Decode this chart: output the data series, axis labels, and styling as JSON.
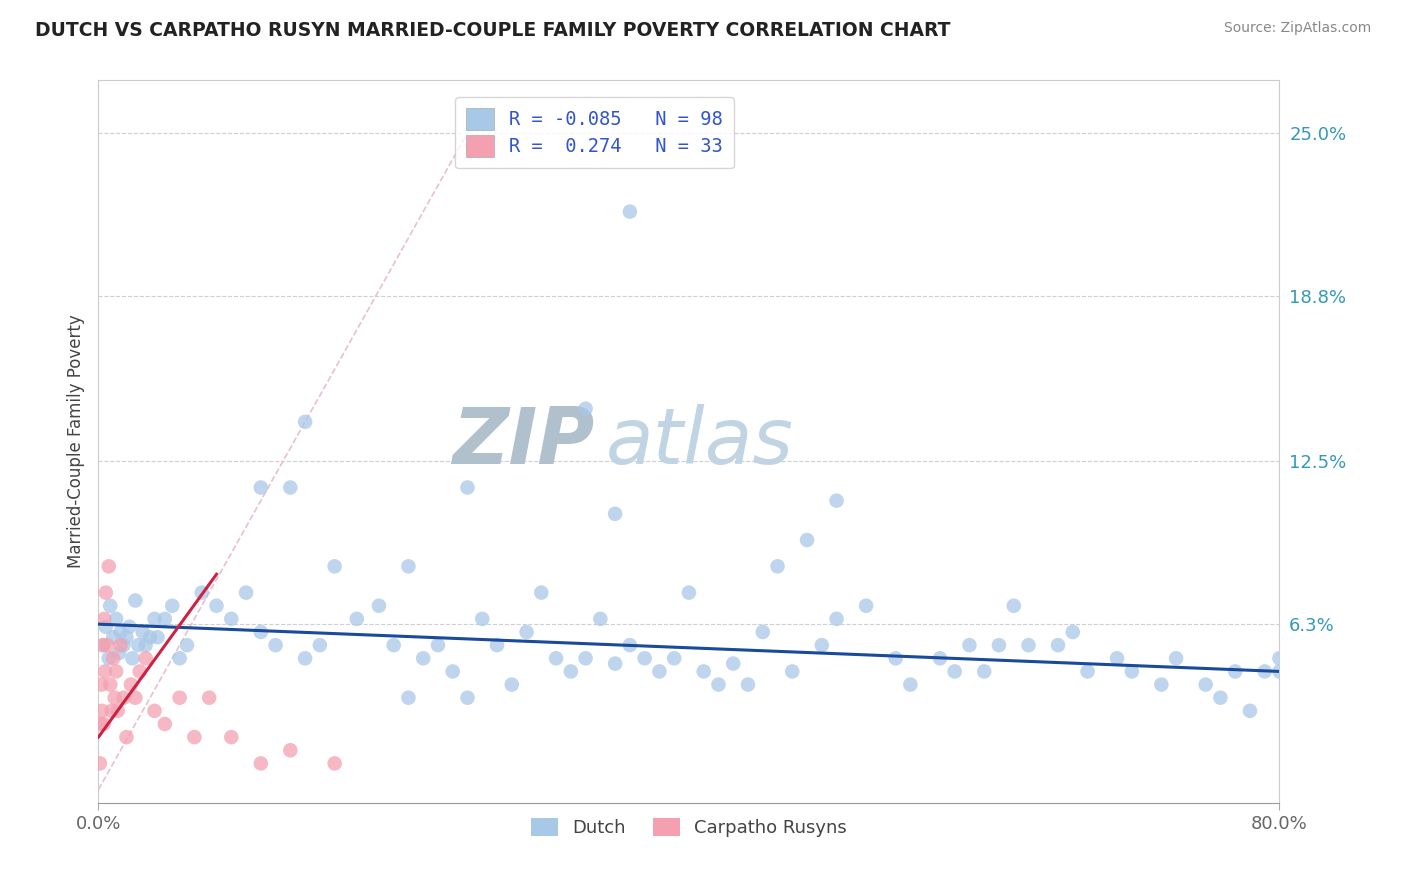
{
  "title": "DUTCH VS CARPATHO RUSYN MARRIED-COUPLE FAMILY POVERTY CORRELATION CHART",
  "source": "Source: ZipAtlas.com",
  "ylabel": "Married-Couple Family Poverty",
  "xlim": [
    0.0,
    80.0
  ],
  "ylim": [
    -0.5,
    27.0
  ],
  "x_tick_labels": [
    "0.0%",
    "80.0%"
  ],
  "y_tick_positions": [
    6.3,
    12.5,
    18.8,
    25.0
  ],
  "y_tick_labels": [
    "6.3%",
    "12.5%",
    "18.8%",
    "25.0%"
  ],
  "dutch_R": -0.085,
  "dutch_N": 98,
  "rusyn_R": 0.274,
  "rusyn_N": 33,
  "dutch_color": "#a8c8e8",
  "rusyn_color": "#f4a0b0",
  "dutch_line_color": "#1a4a9a",
  "rusyn_line_color": "#cc2244",
  "ref_line_color": "#e8b8c8",
  "background_color": "#ffffff",
  "grid_color": "#bbbbbb",
  "title_color": "#222222",
  "watermark_ZIP_color": "#b0c0cc",
  "watermark_atlas_color": "#c0d4e4",
  "source_color": "#888888",
  "axis_label_color": "#444444",
  "ytick_color": "#3399bb",
  "xtick_color": "#666666",
  "legend_color": "#3355cc",
  "dutch_reg_x0": 0.0,
  "dutch_reg_x1": 80.0,
  "dutch_reg_y0": 6.3,
  "dutch_reg_y1": 4.5,
  "rusyn_reg_x0": 0.0,
  "rusyn_reg_x1": 8.0,
  "rusyn_reg_y0": 2.0,
  "rusyn_reg_y1": 8.2,
  "ref_diag_x0": 0.0,
  "ref_diag_y0": 0.0,
  "ref_diag_x1": 26.0,
  "ref_diag_y1": 26.0,
  "dutch_x": [
    0.3,
    0.5,
    0.7,
    0.8,
    1.0,
    1.2,
    1.4,
    1.5,
    1.7,
    1.9,
    2.1,
    2.3,
    2.5,
    2.7,
    3.0,
    3.2,
    3.5,
    3.8,
    4.0,
    4.5,
    5.0,
    5.5,
    6.0,
    7.0,
    8.0,
    9.0,
    10.0,
    11.0,
    12.0,
    13.0,
    14.0,
    15.0,
    16.0,
    17.5,
    19.0,
    20.0,
    21.0,
    22.0,
    23.0,
    24.0,
    25.0,
    26.0,
    27.0,
    28.0,
    29.0,
    30.0,
    31.0,
    32.0,
    33.0,
    34.0,
    35.0,
    36.0,
    37.0,
    38.0,
    39.0,
    40.0,
    41.0,
    42.0,
    43.0,
    44.0,
    45.0,
    47.0,
    49.0,
    50.0,
    52.0,
    54.0,
    55.0,
    57.0,
    58.0,
    59.0,
    60.0,
    61.0,
    62.0,
    63.0,
    65.0,
    66.0,
    67.0,
    69.0,
    70.0,
    72.0,
    73.0,
    75.0,
    76.0,
    77.0,
    78.0,
    79.0,
    80.0,
    36.0,
    33.0,
    14.0,
    25.0,
    11.0,
    35.0,
    50.0,
    21.0,
    48.0,
    46.0,
    80.0
  ],
  "dutch_y": [
    5.5,
    6.2,
    5.0,
    7.0,
    5.8,
    6.5,
    5.2,
    6.0,
    5.5,
    5.8,
    6.2,
    5.0,
    7.2,
    5.5,
    6.0,
    5.5,
    5.8,
    6.5,
    5.8,
    6.5,
    7.0,
    5.0,
    5.5,
    7.5,
    7.0,
    6.5,
    7.5,
    6.0,
    5.5,
    11.5,
    5.0,
    5.5,
    8.5,
    6.5,
    7.0,
    5.5,
    8.5,
    5.0,
    5.5,
    4.5,
    11.5,
    6.5,
    5.5,
    4.0,
    6.0,
    7.5,
    5.0,
    4.5,
    5.0,
    6.5,
    4.8,
    5.5,
    5.0,
    4.5,
    5.0,
    7.5,
    4.5,
    4.0,
    4.8,
    4.0,
    6.0,
    4.5,
    5.5,
    6.5,
    7.0,
    5.0,
    4.0,
    5.0,
    4.5,
    5.5,
    4.5,
    5.5,
    7.0,
    5.5,
    5.5,
    6.0,
    4.5,
    5.0,
    4.5,
    4.0,
    5.0,
    4.0,
    3.5,
    4.5,
    3.0,
    4.5,
    4.5,
    22.0,
    14.5,
    14.0,
    3.5,
    11.5,
    10.5,
    11.0,
    3.5,
    9.5,
    8.5,
    5.0
  ],
  "rusyn_x": [
    0.1,
    0.15,
    0.2,
    0.25,
    0.3,
    0.35,
    0.4,
    0.45,
    0.5,
    0.6,
    0.7,
    0.8,
    0.9,
    1.0,
    1.1,
    1.2,
    1.3,
    1.5,
    1.7,
    1.9,
    2.2,
    2.5,
    2.8,
    3.2,
    3.8,
    4.5,
    5.5,
    6.5,
    7.5,
    9.0,
    11.0,
    13.0,
    16.0
  ],
  "rusyn_y": [
    1.0,
    2.5,
    4.0,
    3.0,
    5.5,
    2.5,
    6.5,
    4.5,
    7.5,
    5.5,
    8.5,
    4.0,
    3.0,
    5.0,
    3.5,
    4.5,
    3.0,
    5.5,
    3.5,
    2.0,
    4.0,
    3.5,
    4.5,
    5.0,
    3.0,
    2.5,
    3.5,
    2.0,
    3.5,
    2.0,
    1.0,
    1.5,
    1.0
  ]
}
